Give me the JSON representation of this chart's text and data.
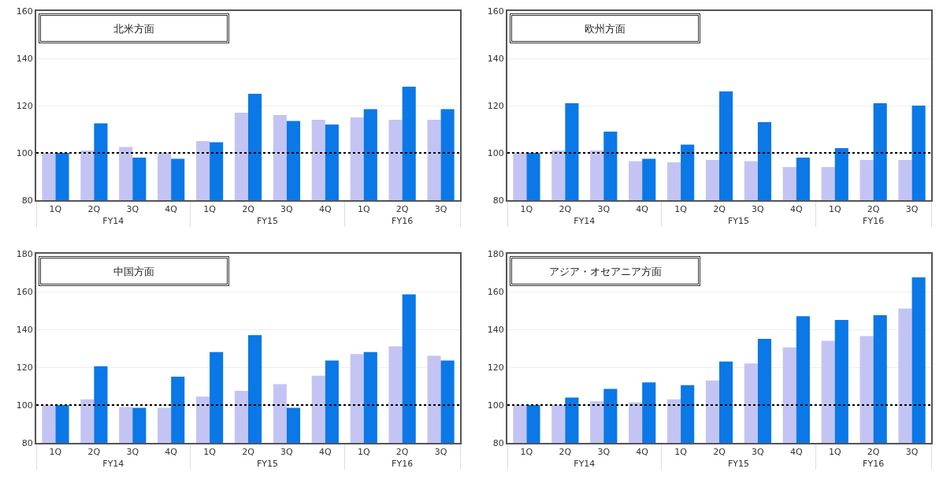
{
  "chart_data": [
    {
      "type": "bar",
      "title": "北米方面",
      "categories": [
        "1Q",
        "2Q",
        "3Q",
        "4Q",
        "1Q",
        "2Q",
        "3Q",
        "4Q",
        "1Q",
        "2Q",
        "3Q"
      ],
      "annotations": [
        "FY14",
        "FY15",
        "FY16"
      ],
      "series": [
        {
          "color": "#c4c4f4",
          "values": [
            100,
            101,
            102.5,
            100,
            105,
            117,
            116,
            114,
            115,
            114,
            114
          ]
        },
        {
          "color": "#0a78e6",
          "values": [
            100,
            112.5,
            98,
            97.5,
            104.5,
            125,
            113.5,
            112,
            118.5,
            128,
            118.5
          ]
        }
      ],
      "ylim": [
        80,
        160
      ],
      "yticks": [
        80,
        100,
        120,
        140,
        160
      ],
      "grid": "y",
      "ref_lines": [
        {
          "axis": "y",
          "value": 100,
          "color": "#000000",
          "line_style": "dotted"
        }
      ]
    },
    {
      "type": "bar",
      "title": "欧州方面",
      "categories": [
        "1Q",
        "2Q",
        "3Q",
        "4Q",
        "1Q",
        "2Q",
        "3Q",
        "4Q",
        "1Q",
        "2Q",
        "3Q"
      ],
      "annotations": [
        "FY14",
        "FY15",
        "FY16"
      ],
      "series": [
        {
          "color": "#c4c4f4",
          "values": [
            100,
            101,
            101,
            96.5,
            96,
            97,
            96.5,
            94,
            94,
            97,
            97
          ]
        },
        {
          "color": "#0a78e6",
          "values": [
            100,
            121,
            109,
            97.5,
            103.5,
            126,
            113,
            98,
            102,
            121,
            120
          ]
        }
      ],
      "ylim": [
        80,
        160
      ],
      "yticks": [
        80,
        100,
        120,
        140,
        160
      ],
      "grid": "y",
      "ref_lines": [
        {
          "axis": "y",
          "value": 100,
          "color": "#000000",
          "line_style": "dotted"
        }
      ]
    },
    {
      "type": "bar",
      "title": "中国方面",
      "categories": [
        "1Q",
        "2Q",
        "3Q",
        "4Q",
        "1Q",
        "2Q",
        "3Q",
        "4Q",
        "1Q",
        "2Q",
        "3Q"
      ],
      "annotations": [
        "FY14",
        "FY15",
        "FY16"
      ],
      "series": [
        {
          "color": "#c4c4f4",
          "values": [
            100,
            103,
            99,
            98.5,
            104.5,
            107.5,
            111,
            115.5,
            127,
            131,
            126
          ]
        },
        {
          "color": "#0a78e6",
          "values": [
            100,
            120.5,
            98.5,
            115,
            128,
            137,
            98.5,
            123.5,
            128,
            158.5,
            123.5
          ]
        }
      ],
      "ylim": [
        80,
        180
      ],
      "yticks": [
        80,
        100,
        120,
        140,
        160,
        180
      ],
      "grid": "y",
      "ref_lines": [
        {
          "axis": "y",
          "value": 100,
          "color": "#000000",
          "line_style": "dotted"
        }
      ]
    },
    {
      "type": "bar",
      "title": "アジア・オセアニア方面",
      "categories": [
        "1Q",
        "2Q",
        "3Q",
        "4Q",
        "1Q",
        "2Q",
        "3Q",
        "4Q",
        "1Q",
        "2Q",
        "3Q"
      ],
      "annotations": [
        "FY14",
        "FY15",
        "FY16"
      ],
      "series": [
        {
          "color": "#c4c4f4",
          "values": [
            100,
            100,
            102,
            101.5,
            103,
            113,
            122,
            130.5,
            134,
            136.5,
            151
          ]
        },
        {
          "color": "#0a78e6",
          "values": [
            100,
            104,
            108.5,
            112,
            110.5,
            123,
            135,
            147,
            145,
            147.5,
            167.5
          ]
        }
      ],
      "ylim": [
        80,
        180
      ],
      "yticks": [
        80,
        100,
        120,
        140,
        160,
        180
      ],
      "grid": "y",
      "ref_lines": [
        {
          "axis": "y",
          "value": 100,
          "color": "#000000",
          "line_style": "dotted"
        }
      ]
    }
  ]
}
